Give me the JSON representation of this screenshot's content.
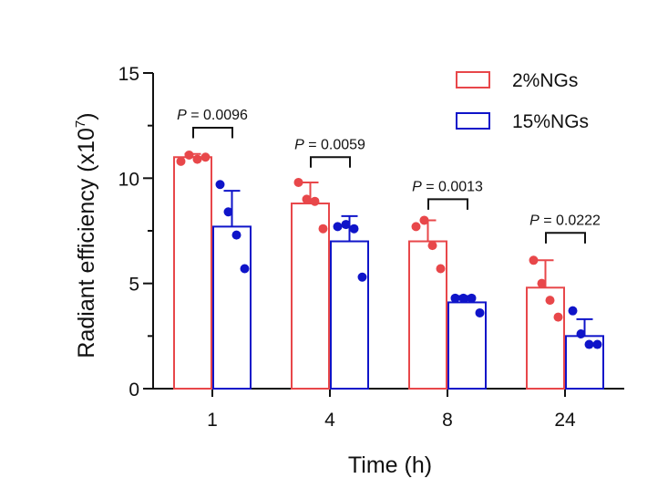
{
  "chart_data": {
    "type": "bar",
    "title": "",
    "xlabel": "Time (h)",
    "ylabel": "Radiant efficiency (x10",
    "ylabel_exponent": "7",
    "ylabel_close": ")",
    "ylim": [
      0,
      15
    ],
    "yticks": [
      0,
      5,
      10,
      15
    ],
    "categories": [
      "1",
      "4",
      "8",
      "24"
    ],
    "legend_position": "top-right",
    "series": [
      {
        "name": "2%NGs",
        "color": "#e8474a",
        "values": [
          11.0,
          8.8,
          7.0,
          4.8
        ],
        "sd": [
          0.15,
          1.0,
          1.0,
          1.3
        ],
        "points": [
          [
            10.8,
            11.1,
            10.9,
            11.0
          ],
          [
            9.8,
            9.0,
            8.9,
            7.6
          ],
          [
            7.7,
            8.0,
            6.8,
            5.7
          ],
          [
            6.1,
            5.0,
            4.2,
            3.4
          ]
        ]
      },
      {
        "name": "15%NGs",
        "color": "#0f14c9",
        "values": [
          7.7,
          7.0,
          4.1,
          2.5
        ],
        "sd": [
          1.7,
          1.2,
          0.3,
          0.8
        ],
        "points": [
          [
            9.7,
            8.4,
            7.3,
            5.7
          ],
          [
            7.7,
            7.8,
            7.6,
            5.3
          ],
          [
            4.3,
            4.3,
            4.3,
            3.6
          ],
          [
            3.7,
            2.6,
            2.1,
            2.1
          ]
        ]
      }
    ],
    "comparisons": [
      {
        "category": "1",
        "prefix": "P",
        "text": " = 0.0096",
        "y": 12.4
      },
      {
        "category": "4",
        "prefix": "P",
        "text": " = 0.0059",
        "y": 11.0
      },
      {
        "category": "8",
        "prefix": "P",
        "text": " = 0.0013",
        "y": 9.0
      },
      {
        "category": "24",
        "prefix": "P",
        "text": " = 0.0222",
        "y": 7.4
      }
    ]
  }
}
